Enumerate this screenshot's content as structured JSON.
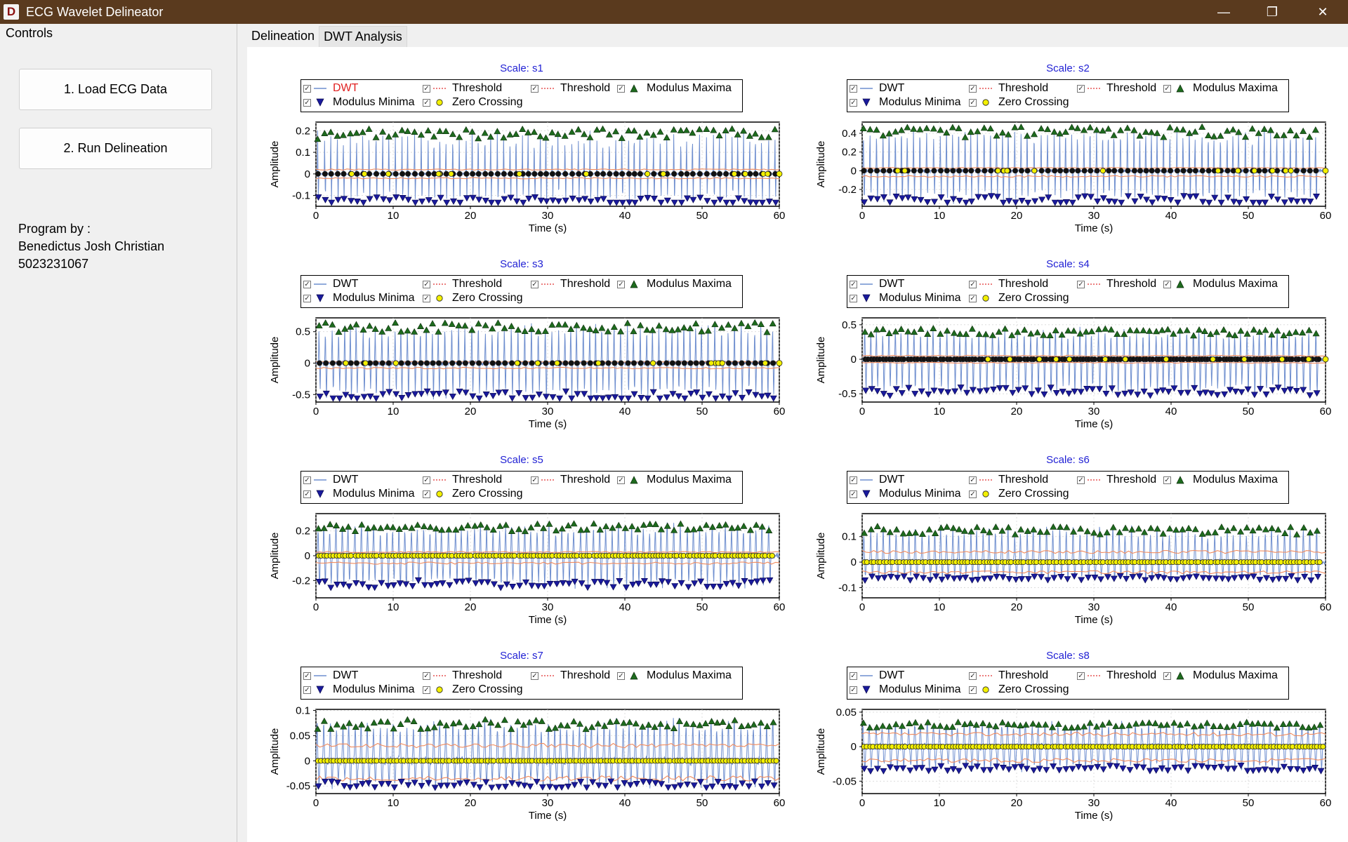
{
  "window": {
    "icon_letter": "D",
    "title": "ECG Wavelet Delineator",
    "minimize_glyph": "—",
    "maximize_glyph": "❐",
    "close_glyph": "✕"
  },
  "controls": {
    "group_label": "Controls",
    "load_button": "1. Load ECG Data",
    "run_button": "2. Run Delineation",
    "program_by": "Program by :",
    "author": "Benedictus Josh Christian",
    "student_id": "5023231067"
  },
  "tabs": [
    {
      "label": "Delineation",
      "active": false
    },
    {
      "label": "DWT Analysis",
      "active": true
    }
  ],
  "colors": {
    "dwt": "#6f8fcf",
    "threshold": "#f08a5d",
    "maxima": "#1e6b1e",
    "minima": "#1a1a9c",
    "zero": "#f3f000",
    "title": "#1f1fd4",
    "dwt_highlight": "#e02020"
  },
  "legend_labels": {
    "dwt": "DWT",
    "threshold_pos": "Threshold",
    "threshold_neg": "Threshold",
    "maxima": "Modulus Maxima",
    "minima": "Modulus Minima",
    "zero": "Zero Crossing"
  },
  "chart_data": [
    {
      "type": "line",
      "title": "Scale: s1",
      "xlabel": "Time (s)",
      "ylabel": "Amplitude",
      "xlim": [
        0,
        60
      ],
      "ylim": [
        -0.15,
        0.24
      ],
      "yticks": [
        -0.1,
        0,
        0.1,
        0.2
      ],
      "xticks": [
        0,
        10,
        20,
        30,
        40,
        50,
        60
      ],
      "maxima_level": 0.18,
      "minima_level": -0.12,
      "threshold": [
        0.02,
        -0.02
      ],
      "zero_level": 0,
      "dwt_legend_highlight": true
    },
    {
      "type": "line",
      "title": "Scale: s2",
      "xlabel": "Time (s)",
      "ylabel": "Amplitude",
      "xlim": [
        0,
        60
      ],
      "ylim": [
        -0.38,
        0.52
      ],
      "yticks": [
        -0.2,
        0,
        0.2,
        0.4
      ],
      "xticks": [
        0,
        10,
        20,
        30,
        40,
        50,
        60
      ],
      "maxima_level": 0.4,
      "minima_level": -0.3,
      "threshold": [
        0.03,
        -0.06
      ],
      "zero_level": 0,
      "dwt_legend_highlight": false
    },
    {
      "type": "line",
      "title": "Scale: s3",
      "xlabel": "Time (s)",
      "ylabel": "Amplitude",
      "xlim": [
        0,
        60
      ],
      "ylim": [
        -0.62,
        0.72
      ],
      "yticks": [
        -0.5,
        0,
        0.5
      ],
      "xticks": [
        0,
        10,
        20,
        30,
        40,
        50,
        60
      ],
      "maxima_level": 0.55,
      "minima_level": -0.5,
      "threshold": [
        0.02,
        -0.08
      ],
      "zero_level": 0,
      "dwt_legend_highlight": false
    },
    {
      "type": "line",
      "title": "Scale: s4",
      "xlabel": "Time (s)",
      "ylabel": "Amplitude",
      "xlim": [
        0,
        60
      ],
      "ylim": [
        -0.62,
        0.6
      ],
      "yticks": [
        -0.5,
        0,
        0.5
      ],
      "xticks": [
        0,
        10,
        20,
        30,
        40,
        50,
        60
      ],
      "maxima_level": 0.38,
      "minima_level": -0.45,
      "threshold": [
        0.05,
        -0.05
      ],
      "zero_level": 0,
      "dwt_legend_highlight": false
    },
    {
      "type": "line",
      "title": "Scale: s5",
      "xlabel": "Time (s)",
      "ylabel": "Amplitude",
      "xlim": [
        0,
        60
      ],
      "ylim": [
        -0.34,
        0.34
      ],
      "yticks": [
        -0.2,
        0,
        0.2
      ],
      "xticks": [
        0,
        10,
        20,
        30,
        40,
        50,
        60
      ],
      "maxima_level": 0.22,
      "minima_level": -0.22,
      "threshold": [
        0.03,
        -0.06
      ],
      "zero_level": 0,
      "dwt_legend_highlight": false
    },
    {
      "type": "line",
      "title": "Scale: s6",
      "xlabel": "Time (s)",
      "ylabel": "Amplitude",
      "xlim": [
        0,
        60
      ],
      "ylim": [
        -0.14,
        0.19
      ],
      "yticks": [
        -0.1,
        0,
        0.1
      ],
      "xticks": [
        0,
        10,
        20,
        30,
        40,
        50,
        60
      ],
      "maxima_level": 0.12,
      "minima_level": -0.06,
      "threshold": [
        0.04,
        -0.04
      ],
      "zero_level": 0,
      "dwt_legend_highlight": false
    },
    {
      "type": "line",
      "title": "Scale: s7",
      "xlabel": "Time (s)",
      "ylabel": "Amplitude",
      "xlim": [
        0,
        60
      ],
      "ylim": [
        -0.065,
        0.102
      ],
      "yticks": [
        -0.05,
        0,
        0.05,
        0.1
      ],
      "xticks": [
        0,
        10,
        20,
        30,
        40,
        50,
        60
      ],
      "maxima_level": 0.07,
      "minima_level": -0.045,
      "threshold": [
        0.03,
        -0.035
      ],
      "zero_level": 0,
      "dwt_legend_highlight": false
    },
    {
      "type": "line",
      "title": "Scale: s8",
      "xlabel": "Time (s)",
      "ylabel": "Amplitude",
      "xlim": [
        0,
        60
      ],
      "ylim": [
        -0.068,
        0.054
      ],
      "yticks": [
        -0.05,
        0,
        0.05
      ],
      "xticks": [
        0,
        10,
        20,
        30,
        40,
        50,
        60
      ],
      "maxima_level": 0.03,
      "minima_level": -0.03,
      "threshold": [
        0.018,
        -0.02
      ],
      "zero_level": 0,
      "dwt_legend_highlight": false
    }
  ]
}
